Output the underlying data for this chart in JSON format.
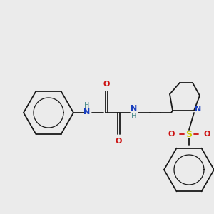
{
  "background_color": "#ebebeb",
  "fig_size": [
    3.0,
    3.0
  ],
  "dpi": 100,
  "colors": {
    "bond": "#1a1a1a",
    "N": "#1a3fbf",
    "O": "#cc1111",
    "S": "#cccc00",
    "H_color": "#4a8a8a"
  },
  "layout": {
    "xlim": [
      0,
      300
    ],
    "ylim": [
      0,
      300
    ]
  }
}
